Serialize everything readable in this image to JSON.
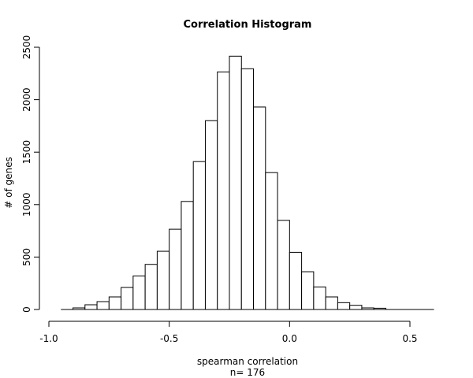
{
  "chart_data": {
    "type": "bar",
    "title": "Correlation Histogram",
    "xlabel": "spearman correlation",
    "xlabel_sub": "n= 176",
    "ylabel": "# of genes",
    "xlim": [
      -1.0,
      0.6
    ],
    "ylim": [
      0,
      2500
    ],
    "x_ticks": [
      -1.0,
      -0.5,
      0.0,
      0.5
    ],
    "x_tick_labels": [
      "-1.0",
      "-0.5",
      "0.0",
      "0.5"
    ],
    "y_ticks": [
      0,
      500,
      1000,
      1500,
      2000,
      2500
    ],
    "y_tick_labels": [
      "0",
      "500",
      "1000",
      "1500",
      "2000",
      "2500"
    ],
    "bin_width": 0.05,
    "bins": [
      {
        "start": -0.95,
        "end": -0.9,
        "value": 0
      },
      {
        "start": -0.9,
        "end": -0.85,
        "value": 15
      },
      {
        "start": -0.85,
        "end": -0.8,
        "value": 45
      },
      {
        "start": -0.8,
        "end": -0.75,
        "value": 75
      },
      {
        "start": -0.75,
        "end": -0.7,
        "value": 120
      },
      {
        "start": -0.7,
        "end": -0.65,
        "value": 210
      },
      {
        "start": -0.65,
        "end": -0.6,
        "value": 320
      },
      {
        "start": -0.6,
        "end": -0.55,
        "value": 430
      },
      {
        "start": -0.55,
        "end": -0.5,
        "value": 555
      },
      {
        "start": -0.5,
        "end": -0.45,
        "value": 765
      },
      {
        "start": -0.45,
        "end": -0.4,
        "value": 1030
      },
      {
        "start": -0.4,
        "end": -0.35,
        "value": 1410
      },
      {
        "start": -0.35,
        "end": -0.3,
        "value": 1800
      },
      {
        "start": -0.3,
        "end": -0.25,
        "value": 2265
      },
      {
        "start": -0.25,
        "end": -0.2,
        "value": 2415
      },
      {
        "start": -0.2,
        "end": -0.15,
        "value": 2295
      },
      {
        "start": -0.15,
        "end": -0.1,
        "value": 1930
      },
      {
        "start": -0.1,
        "end": -0.05,
        "value": 1305
      },
      {
        "start": -0.05,
        "end": 0.0,
        "value": 850
      },
      {
        "start": 0.0,
        "end": 0.05,
        "value": 545
      },
      {
        "start": 0.05,
        "end": 0.1,
        "value": 360
      },
      {
        "start": 0.1,
        "end": 0.15,
        "value": 215
      },
      {
        "start": 0.15,
        "end": 0.2,
        "value": 120
      },
      {
        "start": 0.2,
        "end": 0.25,
        "value": 65
      },
      {
        "start": 0.25,
        "end": 0.3,
        "value": 40
      },
      {
        "start": 0.3,
        "end": 0.35,
        "value": 15
      },
      {
        "start": 0.35,
        "end": 0.4,
        "value": 12
      },
      {
        "start": 0.4,
        "end": 0.45,
        "value": 0
      },
      {
        "start": 0.45,
        "end": 0.5,
        "value": 0
      },
      {
        "start": 0.5,
        "end": 0.55,
        "value": 0
      },
      {
        "start": 0.55,
        "end": 0.6,
        "value": 0
      }
    ],
    "grid": false,
    "legend": "none",
    "colors": {
      "bar_fill": "#ffffff",
      "bar_stroke": "#000000"
    }
  }
}
